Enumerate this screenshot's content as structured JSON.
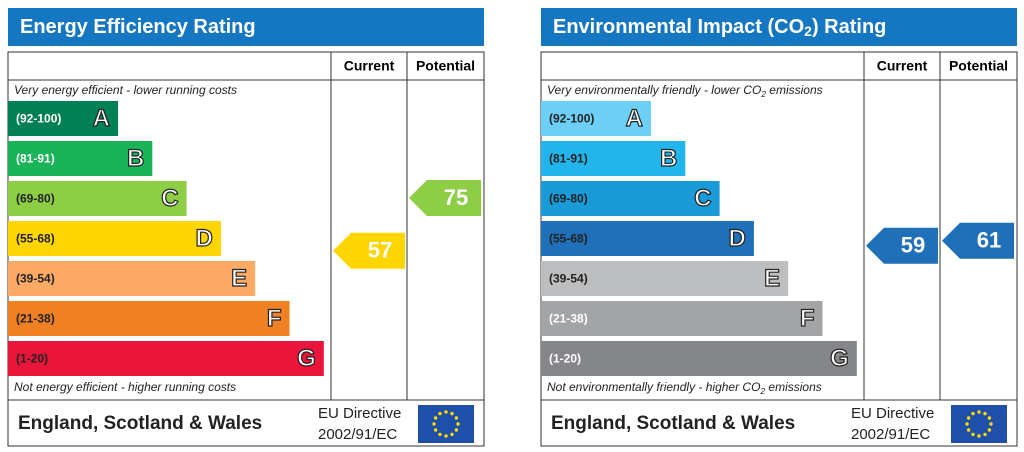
{
  "panels": [
    {
      "title": [
        "Energy Efficiency Rating"
      ],
      "columns": [
        "Current",
        "Potential"
      ],
      "top_note": [
        "Very energy efficient - lower running costs"
      ],
      "bottom_note": [
        "Not energy efficient - higher running costs"
      ],
      "bands": [
        {
          "range": "(92-100)",
          "letter": "A",
          "color": "#008054",
          "text_color": "#ffffff"
        },
        {
          "range": "(81-91)",
          "letter": "B",
          "color": "#19b459",
          "text_color": "#ffffff"
        },
        {
          "range": "(69-80)",
          "letter": "C",
          "color": "#8dce46",
          "text_color": "#222222"
        },
        {
          "range": "(55-68)",
          "letter": "D",
          "color": "#ffd500",
          "text_color": "#222222"
        },
        {
          "range": "(39-54)",
          "letter": "E",
          "color": "#fcaa65",
          "text_color": "#222222"
        },
        {
          "range": "(21-38)",
          "letter": "F",
          "color": "#ef8023",
          "text_color": "#222222"
        },
        {
          "range": "(1-20)",
          "letter": "G",
          "color": "#e9153b",
          "text_color": "#222222"
        }
      ],
      "current": 57,
      "potential": 75,
      "footer": {
        "region": "England, Scotland & Wales",
        "directive": "EU Directive",
        "code": "2002/91/EC"
      }
    },
    {
      "title": [
        "Environmental Impact (CO",
        "2",
        ") Rating"
      ],
      "columns": [
        "Current",
        "Potential"
      ],
      "top_note": [
        "Very environmentally friendly - lower CO",
        "2",
        " emissions"
      ],
      "bottom_note": [
        "Not environmentally friendly - higher CO",
        "2",
        " emissions"
      ],
      "bands": [
        {
          "range": "(92-100)",
          "letter": "A",
          "color": "#6dcff6",
          "text_color": "#222222"
        },
        {
          "range": "(81-91)",
          "letter": "B",
          "color": "#22b5eb",
          "text_color": "#222222"
        },
        {
          "range": "(69-80)",
          "letter": "C",
          "color": "#1a9ad6",
          "text_color": "#222222"
        },
        {
          "range": "(55-68)",
          "letter": "D",
          "color": "#1f6fb9",
          "text_color": "#222222"
        },
        {
          "range": "(39-54)",
          "letter": "E",
          "color": "#bcbec0",
          "text_color": "#222222"
        },
        {
          "range": "(21-38)",
          "letter": "F",
          "color": "#a2a4a6",
          "text_color": "#ffffff"
        },
        {
          "range": "(1-20)",
          "letter": "G",
          "color": "#848689",
          "text_color": "#ffffff"
        }
      ],
      "current": 59,
      "potential": 61,
      "footer": {
        "region": "England, Scotland & Wales",
        "directive": "EU Directive",
        "code": "2002/91/EC"
      }
    }
  ]
}
